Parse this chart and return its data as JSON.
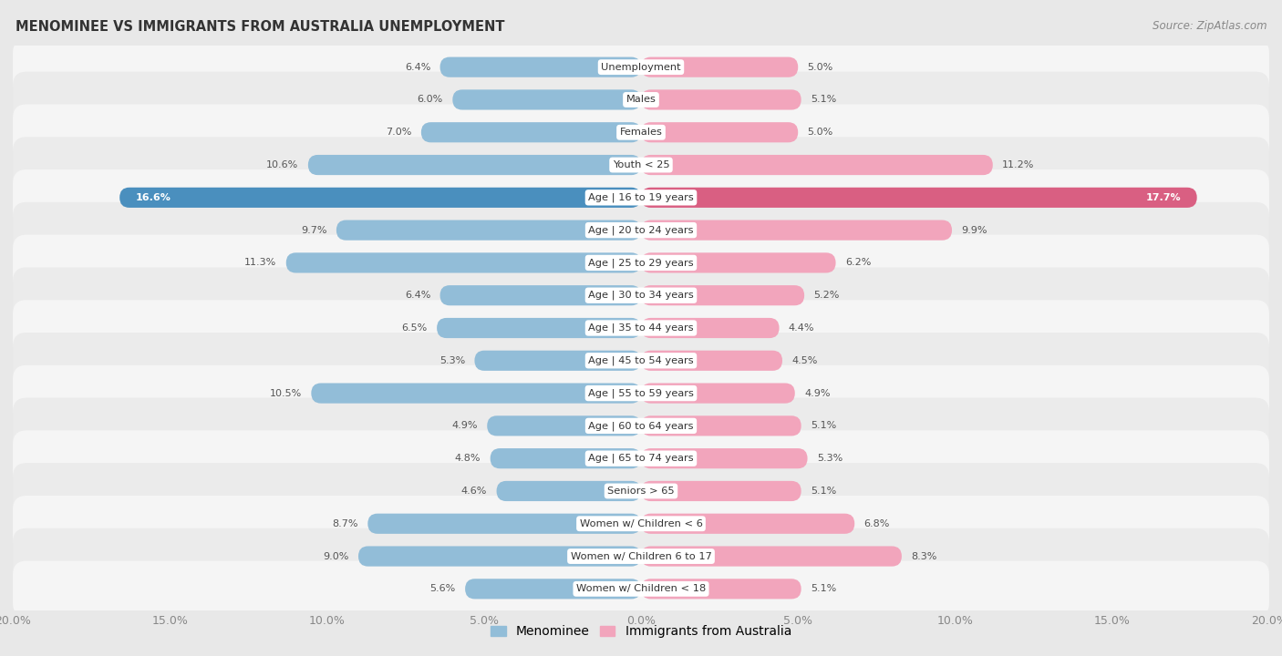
{
  "title": "MENOMINEE VS IMMIGRANTS FROM AUSTRALIA UNEMPLOYMENT",
  "source": "Source: ZipAtlas.com",
  "categories": [
    "Unemployment",
    "Males",
    "Females",
    "Youth < 25",
    "Age | 16 to 19 years",
    "Age | 20 to 24 years",
    "Age | 25 to 29 years",
    "Age | 30 to 34 years",
    "Age | 35 to 44 years",
    "Age | 45 to 54 years",
    "Age | 55 to 59 years",
    "Age | 60 to 64 years",
    "Age | 65 to 74 years",
    "Seniors > 65",
    "Women w/ Children < 6",
    "Women w/ Children 6 to 17",
    "Women w/ Children < 18"
  ],
  "menominee": [
    6.4,
    6.0,
    7.0,
    10.6,
    16.6,
    9.7,
    11.3,
    6.4,
    6.5,
    5.3,
    10.5,
    4.9,
    4.8,
    4.6,
    8.7,
    9.0,
    5.6
  ],
  "australia": [
    5.0,
    5.1,
    5.0,
    11.2,
    17.7,
    9.9,
    6.2,
    5.2,
    4.4,
    4.5,
    4.9,
    5.1,
    5.3,
    5.1,
    6.8,
    8.3,
    5.1
  ],
  "menominee_color": "#92bdd8",
  "menominee_color_highlight": "#4a8fbe",
  "australia_color": "#f2a5bc",
  "australia_color_highlight": "#d95f82",
  "page_bg": "#e8e8e8",
  "row_bg_light": "#f5f5f5",
  "row_bg_dark": "#ebebeb",
  "max_val": 20.0,
  "legend_menominee": "Menominee",
  "legend_australia": "Immigrants from Australia"
}
